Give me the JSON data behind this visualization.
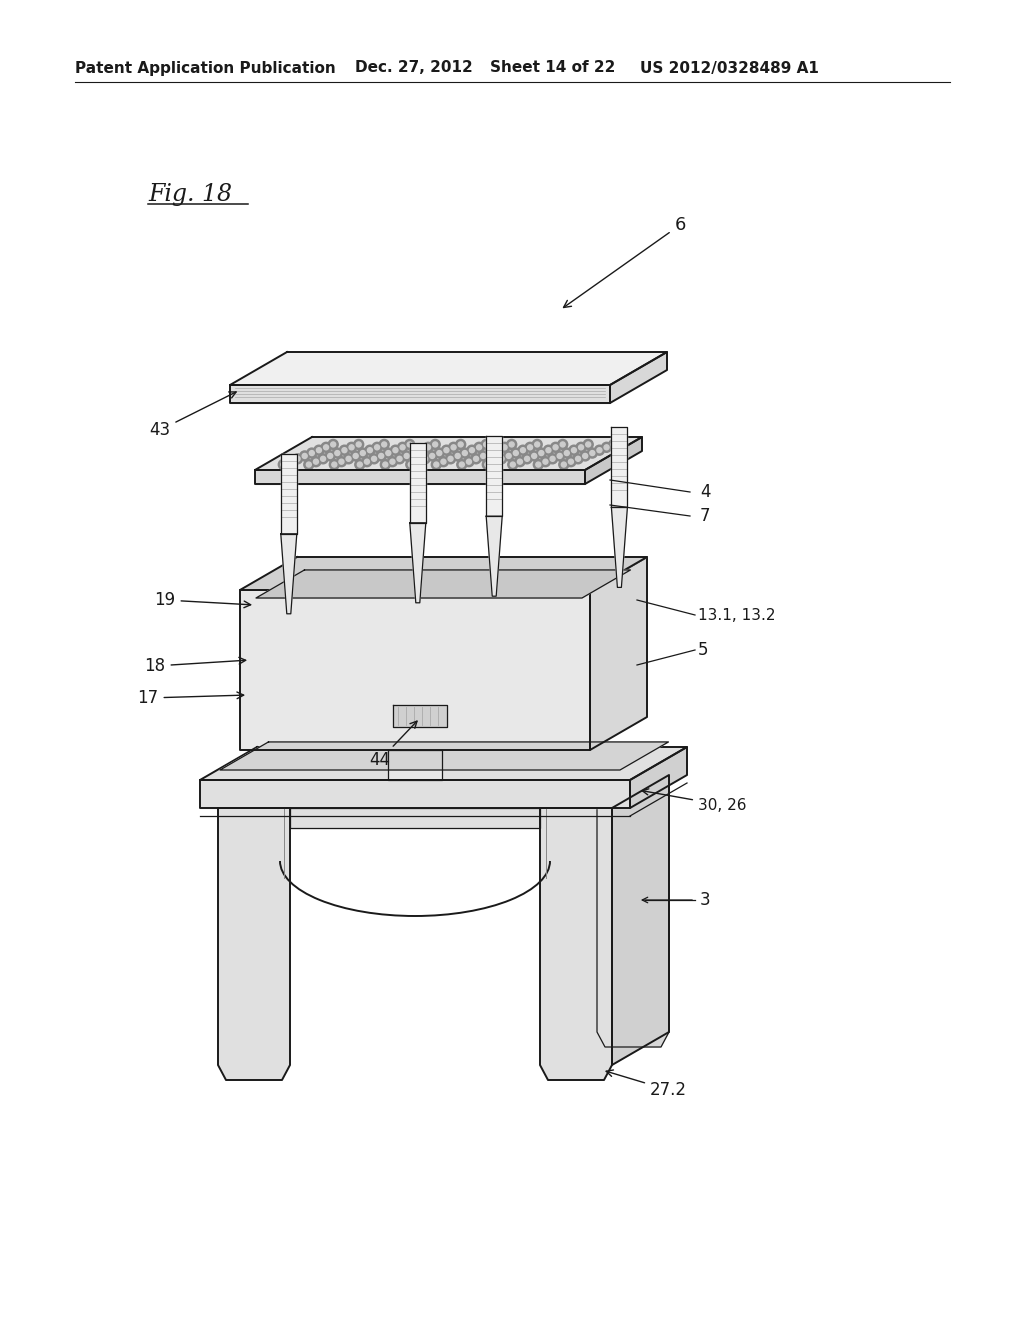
{
  "title_text": "Patent Application Publication",
  "date_text": "Dec. 27, 2012",
  "sheet_text": "Sheet 14 of 22",
  "patent_text": "US 2012/0328489 A1",
  "fig_label": "Fig. 18",
  "background_color": "#ffffff",
  "line_color": "#1a1a1a",
  "gray_light": "#e8e8e8",
  "gray_mid": "#d0d0d0",
  "gray_dark": "#b0b0b0",
  "gray_fill": "#f2f2f2"
}
